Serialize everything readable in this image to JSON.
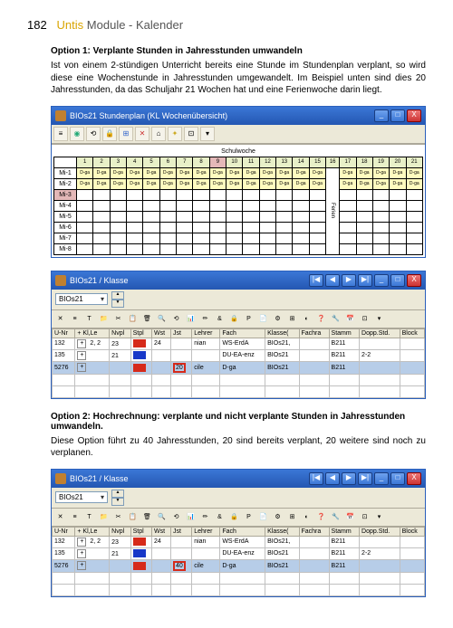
{
  "page": {
    "number": "182",
    "brand": "Untis",
    "module": "Module - Kalender"
  },
  "option1": {
    "title": "Option 1: Verplante Stunden in Jahresstunden umwandeln",
    "text": "Ist von einem 2-stündigen Unterricht bereits eine Stunde im Stundenplan verplant, so wird diese eine Wochenstunde in Jahresstunden umgewandelt. Im Beispiel unten sind dies 20 Jahresstunden, da das Schuljahr 21 Wochen hat und eine Ferienwoche darin liegt."
  },
  "option2": {
    "title": "Option 2: Hochrechnung: verplante und nicht verplante Stunden in Jahresstunden umwandeln.",
    "text": "Diese Option führt zu 40 Jahresstunden, 20 sind bereits verplant, 20 weitere sind noch zu verplanen."
  },
  "win_sp": {
    "title": "BIOs21   Stundenplan (KL Wochenübersicht)",
    "caption": "Schulwoche",
    "weeks": [
      "1",
      "2",
      "3",
      "4",
      "5",
      "6",
      "7",
      "8",
      "9",
      "10",
      "11",
      "12",
      "13",
      "14",
      "15",
      "16",
      "17",
      "18",
      "19",
      "20",
      "21"
    ],
    "hl_week_index": 8,
    "rows": [
      "Mi-1",
      "Mi-2",
      "Mi-3",
      "Mi-4",
      "Mi-5",
      "Mi-6",
      "Mi-7",
      "Mi-8"
    ],
    "red_row_index": 2,
    "cell_label": "D-ga",
    "ferien_col_index": 15,
    "ferien_label": "Ferien",
    "colors": {
      "titlebar_start": "#3b77d6",
      "titlebar_end": "#2457b2",
      "week_bg": "#e8f0c8",
      "week_hl": "#e4b8b8",
      "dga_bg": "#fffbbf",
      "frame_bg": "#ece9d8"
    }
  },
  "win_kl": {
    "title": "BIOs21 / Klasse",
    "dropdown_value": "BIOs21",
    "columns": [
      "U-Nr",
      "+ Kl,Le",
      "Nvpl",
      "Stpl",
      "Wst",
      "Jst",
      "Lehrer",
      "Fach",
      "Klasse(",
      "Fachra",
      "Stamm",
      "Dopp.Std.",
      "Block"
    ],
    "rows1": [
      {
        "unr": "132",
        "klle": "⊞ 2, 2",
        "nvpl": "🐝 23",
        "stpl": "",
        "wst": "24",
        "jst": "",
        "lehrer": "nian",
        "fach": "WS-ErdA",
        "klasse": "BIOs21,",
        "fachra": "",
        "stamm": "B211",
        "dopp": "",
        "block": ""
      },
      {
        "unr": "135",
        "klle": "⊞",
        "nvpl": "🐝 21",
        "stpl": "",
        "wst": "",
        "jst": "",
        "lehrer": "",
        "fach": "DU-EA-enz",
        "klasse": "BIOs21",
        "fachra": "",
        "stamm": "B211",
        "dopp": "2-2",
        "block": ""
      },
      {
        "unr": "5276",
        "klle": "⊞",
        "nvpl": "",
        "stpl": "■",
        "wst": "",
        "jst": "20",
        "lehrer": "cile",
        "fach": "D-ga",
        "klasse": "BIOs21",
        "fachra": "",
        "stamm": "B211",
        "dopp": "",
        "block": ""
      }
    ],
    "jst_highlight1": "20",
    "rows2": [
      {
        "unr": "132",
        "klle": "⊞ 2, 2",
        "nvpl": "🐝 23",
        "stpl": "",
        "wst": "24",
        "jst": "",
        "lehrer": "nian",
        "fach": "WS-ErdA",
        "klasse": "BIOs21,",
        "fachra": "",
        "stamm": "B211",
        "dopp": "",
        "block": ""
      },
      {
        "unr": "135",
        "klle": "⊞",
        "nvpl": "🐝 21",
        "stpl": "",
        "wst": "",
        "jst": "",
        "lehrer": "",
        "fach": "DU-EA-enz",
        "klasse": "BIOs21",
        "fachra": "",
        "stamm": "B211",
        "dopp": "2-2",
        "block": ""
      },
      {
        "unr": "5276",
        "klle": "⊞",
        "nvpl": "",
        "stpl": "■",
        "wst": "",
        "jst": "40",
        "lehrer": "cile",
        "fach": "D-ga",
        "klasse": "BIOs21",
        "fachra": "",
        "stamm": "B211",
        "dopp": "",
        "block": ""
      }
    ],
    "jst_highlight2": "40",
    "swatch_colors": {
      "red": "#d62a1a",
      "blue": "#1838c8"
    },
    "outline_color": "#d62a1a"
  },
  "glyphs": {
    "min": "_",
    "max": "□",
    "close": "X",
    "nav_first": "|◀",
    "nav_prev": "◀",
    "nav_next": "▶",
    "nav_last": "▶|",
    "dd": "▾",
    "up": "▲",
    "down": "▼"
  }
}
